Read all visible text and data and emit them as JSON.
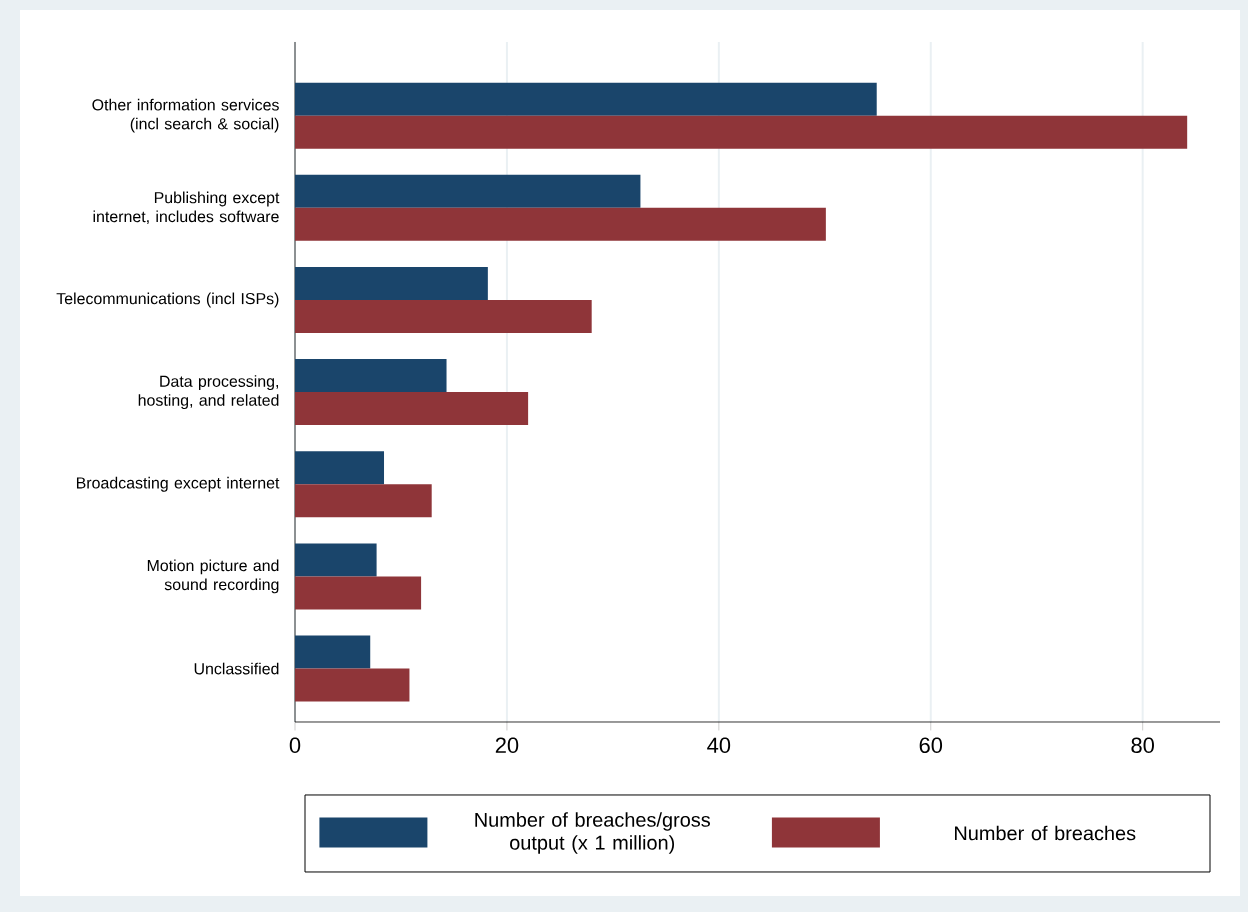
{
  "chart_data": {
    "type": "bar",
    "orientation": "horizontal",
    "categories": [
      "Other information services (incl search & social)",
      "Publishing except internet, includes software",
      "Telecommunications (incl ISPs)",
      "Data processing, hosting, and related",
      "Broadcasting except internet",
      "Motion picture and sound recording",
      "Unclassified"
    ],
    "series": [
      {
        "name": "Number of breaches/gross output (x 1 million)",
        "color": "#1a456b",
        "values": [
          54.9,
          32.6,
          18.2,
          14.3,
          8.4,
          7.7,
          7.1
        ]
      },
      {
        "name": "Number of breaches",
        "color": "#8f3539",
        "values": [
          84.2,
          50.1,
          28.0,
          22.0,
          12.9,
          11.9,
          10.8
        ]
      }
    ],
    "xlim": [
      0,
      87.3
    ],
    "xticks": [
      0,
      20,
      40,
      60,
      80
    ],
    "grid": "x",
    "legend": "bottom"
  }
}
